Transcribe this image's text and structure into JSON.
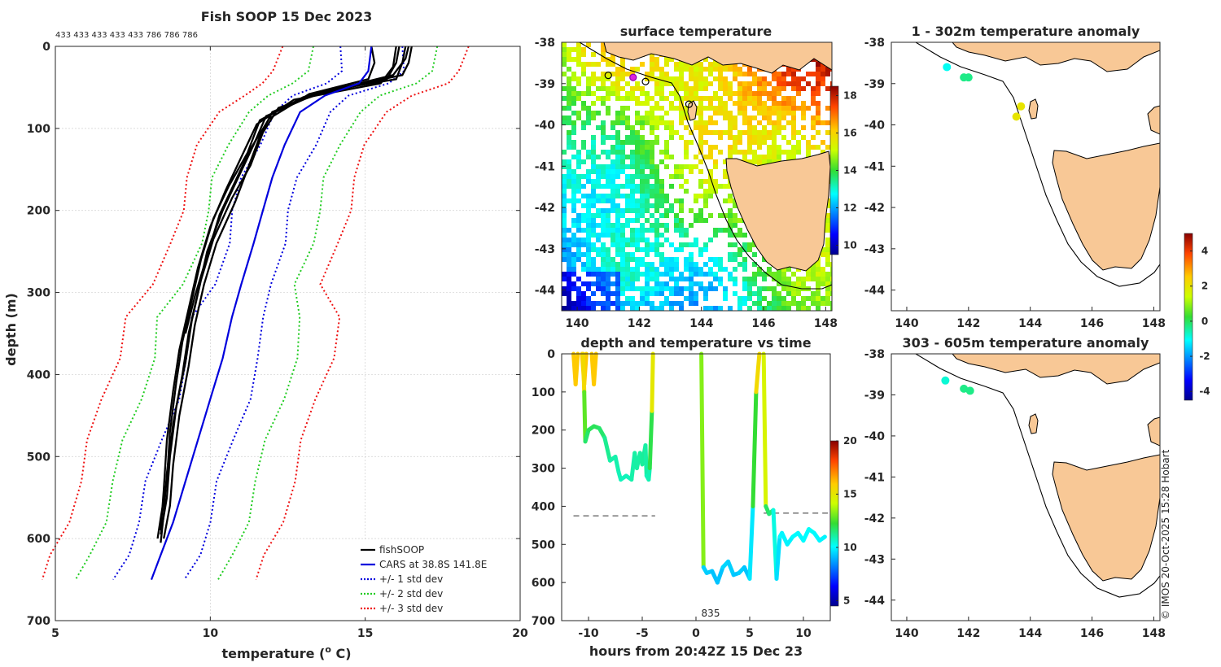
{
  "chart_data": [
    {
      "type": "line",
      "title": "Fish SOOP 15 Dec 2023",
      "xlabel": "temperature (o C)",
      "ylabel": "depth (m)",
      "xlim": [
        5,
        20
      ],
      "ylim": [
        700,
        0
      ],
      "xticks": [
        "5",
        "10",
        "15",
        "20"
      ],
      "yticks": [
        "0",
        "100",
        "200",
        "300",
        "400",
        "500",
        "600",
        "700"
      ],
      "top_annotation": "433 433 433 433 433 786 786 786",
      "cars": {
        "name": "CARS at 38.8S 141.8E",
        "temp": [
          15.2,
          15.1,
          14.8,
          13.7,
          12.9,
          12.4,
          12.0,
          11.7,
          11.4,
          11.0,
          10.7,
          10.4,
          10.0,
          9.6,
          9.2,
          8.8,
          8.4,
          8.1
        ],
        "depth": [
          0,
          30,
          45,
          60,
          80,
          120,
          160,
          200,
          240,
          290,
          330,
          380,
          430,
          480,
          530,
          580,
          620,
          650
        ]
      },
      "band_offsets": [
        1,
        2,
        3
      ],
      "band_colors": [
        "#0000dd",
        "#22cc22",
        "#ee1111"
      ],
      "profiles": [
        {
          "temp": [
            16.3,
            16.2,
            16.0,
            13.6,
            12.0,
            11.6,
            11.2,
            10.8,
            10.2,
            9.8,
            9.5,
            9.3,
            9.0,
            8.8,
            8.7,
            8.5
          ],
          "depth": [
            0,
            20,
            40,
            55,
            80,
            110,
            150,
            190,
            240,
            290,
            340,
            390,
            450,
            510,
            560,
            600
          ]
        },
        {
          "temp": [
            16.1,
            16.0,
            15.7,
            13.3,
            11.8,
            11.4,
            10.9,
            10.4,
            9.9,
            9.6,
            9.3,
            9.1,
            8.8,
            8.6,
            8.5,
            8.4
          ],
          "depth": [
            0,
            20,
            40,
            60,
            85,
            120,
            160,
            200,
            250,
            300,
            350,
            400,
            460,
            520,
            570,
            605
          ]
        },
        {
          "temp": [
            16.4,
            16.3,
            15.9,
            13.0,
            11.6,
            11.2,
            10.6,
            10.1,
            9.7,
            9.4,
            9.1,
            8.9,
            8.7,
            8.6,
            8.4,
            8.3
          ],
          "depth": [
            0,
            15,
            35,
            62,
            90,
            130,
            170,
            210,
            260,
            310,
            360,
            410,
            470,
            530,
            575,
            600
          ]
        },
        {
          "temp": [
            16.0,
            15.9,
            15.5,
            12.7,
            11.5,
            11.0,
            10.5,
            10.0,
            9.6,
            9.3,
            9.0,
            8.8,
            8.6,
            8.5,
            8.4
          ],
          "depth": [
            0,
            25,
            45,
            65,
            95,
            135,
            175,
            220,
            270,
            320,
            370,
            420,
            480,
            540,
            590
          ]
        },
        {
          "temp": [
            15.2,
            15.3,
            15.1,
            13.2,
            11.9,
            11.3,
            10.8,
            10.3,
            9.9,
            9.5,
            9.2
          ],
          "depth": [
            0,
            20,
            40,
            58,
            88,
            125,
            165,
            205,
            255,
            305,
            350
          ]
        },
        {
          "temp": [
            16.5,
            16.4,
            16.2,
            14.0,
            12.2,
            11.7,
            11.3,
            10.7,
            10.1,
            9.7,
            9.4,
            9.2,
            8.9,
            8.7,
            8.6,
            8.4
          ],
          "depth": [
            0,
            20,
            35,
            52,
            75,
            105,
            145,
            185,
            235,
            285,
            335,
            385,
            440,
            500,
            550,
            595
          ]
        }
      ],
      "legend": [
        {
          "label": "fishSOOP",
          "color": "#000000",
          "style": "solid"
        },
        {
          "label": "CARS at 38.8S 141.8E",
          "color": "#0000dd",
          "style": "solid"
        },
        {
          "label": "+/- 1 std dev",
          "color": "#0000dd",
          "style": "dotted"
        },
        {
          "label": "+/- 2 std dev",
          "color": "#22cc22",
          "style": "dotted"
        },
        {
          "label": "+/- 3 std dev",
          "color": "#ee1111",
          "style": "dotted"
        }
      ],
      "legend_position": "bottom-right"
    },
    {
      "type": "heatmap",
      "title": "surface temperature",
      "xlim": [
        139.5,
        148.2
      ],
      "ylim": [
        -44.5,
        -38
      ],
      "xticks": [
        "140",
        "142",
        "144",
        "146",
        "148"
      ],
      "yticks": [
        "-38",
        "-39",
        "-40",
        "-41",
        "-42",
        "-43",
        "-44"
      ],
      "colorbar_ticks": [
        "10",
        "12",
        "14",
        "16",
        "18"
      ],
      "colorbar_range": [
        9.5,
        18.5
      ],
      "track_points": [
        [
          141.0,
          -38.8
        ],
        [
          141.8,
          -38.85
        ],
        [
          142.2,
          -38.95
        ],
        [
          143.6,
          -39.5
        ]
      ]
    },
    {
      "type": "scatter",
      "title": "depth and temperature vs time",
      "xlabel": "hours from 20:42Z 15 Dec 23",
      "xlim": [
        -12.5,
        12.5
      ],
      "ylim": [
        700,
        0
      ],
      "xticks": [
        "-10",
        "-5",
        "0",
        "5",
        "10"
      ],
      "yticks": [
        "0",
        "100",
        "200",
        "300",
        "400",
        "500",
        "600",
        "700"
      ],
      "colorbar_ticks": [
        "5",
        "10",
        "15",
        "20"
      ],
      "colorbar_range": [
        4.5,
        20
      ],
      "annotation": "835",
      "segments": [
        {
          "t": [
            -11.4,
            -11.2,
            -11.0
          ],
          "d": [
            0,
            80,
            0
          ],
          "temp": [
            16,
            16,
            16
          ]
        },
        {
          "t": [
            -10.6,
            -10.4,
            -10.2
          ],
          "d": [
            0,
            80,
            0
          ],
          "temp": [
            16,
            16,
            16
          ]
        },
        {
          "t": [
            -9.7,
            -9.5,
            -9.3
          ],
          "d": [
            0,
            80,
            0
          ],
          "temp": [
            16,
            16,
            16
          ]
        },
        {
          "t": [
            -10.5,
            -10.4,
            -10.3,
            -10.0,
            -9.5,
            -9.0,
            -8.5,
            -8.0,
            -7.5,
            -7.2,
            -7.0,
            -6.5,
            -6.0,
            -5.7,
            -5.5,
            -5.2,
            -5.0,
            -4.7,
            -4.6,
            -4.4,
            -4.3,
            -4.1,
            -4.0
          ],
          "d": [
            0,
            100,
            230,
            200,
            190,
            195,
            220,
            280,
            270,
            310,
            330,
            320,
            330,
            260,
            300,
            260,
            290,
            240,
            320,
            330,
            300,
            150,
            0
          ],
          "temp": [
            17,
            14,
            11.5,
            11.8,
            11.9,
            11.8,
            11.5,
            11.0,
            11.0,
            10.9,
            10.8,
            10.8,
            10.8,
            11.2,
            10.9,
            11.2,
            11.0,
            11.3,
            10.8,
            10.8,
            11.0,
            13,
            17
          ]
        },
        {
          "t": [
            0.5,
            0.7,
            1.0,
            1.5,
            2.0,
            2.5,
            3.0,
            3.5,
            4.0,
            4.5,
            5.0,
            5.3,
            5.6,
            5.9
          ],
          "d": [
            0,
            560,
            575,
            570,
            600,
            560,
            545,
            580,
            575,
            560,
            590,
            400,
            100,
            0
          ],
          "temp": [
            17,
            9.5,
            9.3,
            9.4,
            9.0,
            9.4,
            9.6,
            9.2,
            9.3,
            9.5,
            9.0,
            10.5,
            14,
            17
          ]
        },
        {
          "t": [
            6.3,
            6.5,
            6.8,
            7.2,
            7.5,
            7.8,
            8.0,
            8.5,
            9.0,
            9.5,
            10.0,
            10.5,
            11.0,
            11.5,
            12.0
          ],
          "d": [
            0,
            400,
            420,
            410,
            590,
            480,
            470,
            500,
            480,
            470,
            490,
            460,
            470,
            490,
            480
          ],
          "temp": [
            17,
            12,
            11.5,
            11.6,
            9.2,
            10.0,
            10.1,
            9.8,
            10.0,
            10.1,
            9.9,
            10.2,
            10.1,
            9.9,
            10.0
          ]
        }
      ],
      "dashed_lines": [
        {
          "t0": -11.4,
          "t1": -3.8,
          "depth": 425
        },
        {
          "t0": 6.3,
          "t1": 12.6,
          "depth": 418
        }
      ]
    },
    {
      "type": "scatter",
      "title": "1 - 302m temperature anomaly",
      "xlim": [
        139.5,
        148.2
      ],
      "ylim": [
        -44.5,
        -38
      ],
      "xticks": [
        "140",
        "142",
        "144",
        "146",
        "148"
      ],
      "yticks": [
        "-38",
        "-39",
        "-40",
        "-41",
        "-42",
        "-43",
        "-44"
      ],
      "points": [
        {
          "lon": 141.3,
          "lat": -38.6,
          "anomaly": -1.0
        },
        {
          "lon": 141.85,
          "lat": -38.85,
          "anomaly": -0.3
        },
        {
          "lon": 142.0,
          "lat": -38.85,
          "anomaly": -0.3
        },
        {
          "lon": 143.7,
          "lat": -39.55,
          "anomaly": 2.0
        },
        {
          "lon": 143.55,
          "lat": -39.8,
          "anomaly": 2.0
        }
      ]
    },
    {
      "type": "scatter",
      "title": "303 - 605m temperature anomaly",
      "xlim": [
        139.5,
        148.2
      ],
      "ylim": [
        -44.5,
        -38
      ],
      "xticks": [
        "140",
        "142",
        "144",
        "146",
        "148"
      ],
      "yticks": [
        "-38",
        "-39",
        "-40",
        "-41",
        "-42",
        "-43",
        "-44"
      ],
      "points": [
        {
          "lon": 141.25,
          "lat": -38.65,
          "anomaly": -0.8
        },
        {
          "lon": 141.85,
          "lat": -38.85,
          "anomaly": -0.3
        },
        {
          "lon": 142.05,
          "lat": -38.9,
          "anomaly": -0.3
        }
      ],
      "colorbar_ticks": [
        "4",
        "2",
        "0",
        "-2",
        "-4"
      ],
      "colorbar_range": [
        -4.5,
        5
      ]
    }
  ],
  "credit": "© IMOS 20-Oct-2025 15:28 Hobart"
}
